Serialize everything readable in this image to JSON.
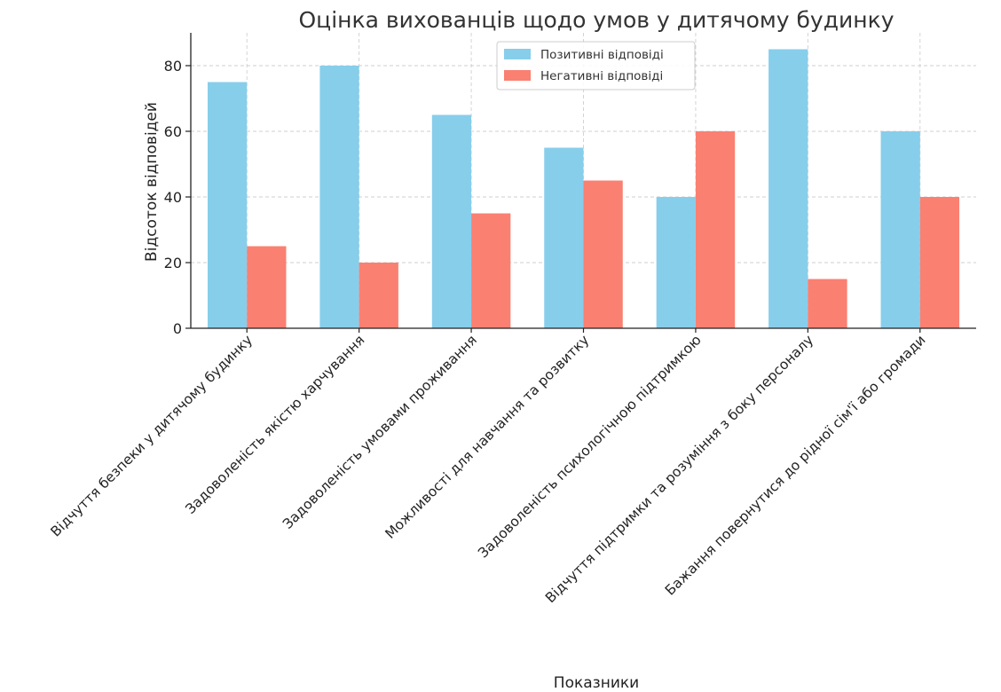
{
  "chart_data": {
    "type": "bar",
    "title": "Оцінка вихованців щодо умов у дитячому будинку",
    "xlabel": "Показники",
    "ylabel": "Відсоток відповідей",
    "ylim": [
      0,
      90
    ],
    "yticks": [
      0,
      20,
      40,
      60,
      80
    ],
    "grid": true,
    "legend_position": "top-center",
    "categories": [
      "Відчуття безпеки у дитячому будинку",
      "Задоволеність якістю харчування",
      "Задоволеність умовами проживання",
      "Можливості для навчання та розвитку",
      "Задоволеність психологічною підтримкою",
      "Відчуття підтримки та розуміння з боку персоналу",
      "Бажання повернутися до рідної сім'ї або громади"
    ],
    "series": [
      {
        "name": "Позитивні відповіді",
        "color": "#87CEEB",
        "values": [
          75,
          80,
          65,
          55,
          40,
          85,
          60
        ]
      },
      {
        "name": "Негативні відповіді",
        "color": "#FA8072",
        "values": [
          25,
          20,
          35,
          45,
          60,
          15,
          40
        ]
      }
    ]
  }
}
